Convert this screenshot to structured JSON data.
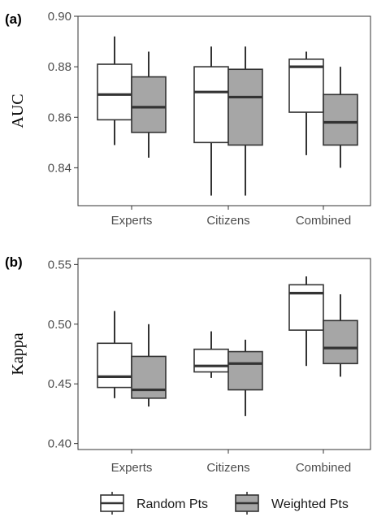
{
  "chart_data": [
    {
      "type": "box",
      "panel_label": "(a)",
      "ylabel": "AUC",
      "categories": [
        "Experts",
        "Citizens",
        "Combined"
      ],
      "ylim": [
        0.825,
        0.9
      ],
      "yticks": [
        0.84,
        0.86,
        0.88,
        0.9
      ],
      "ytick_labels": [
        "0.84",
        "0.86",
        "0.88",
        "0.90"
      ],
      "grid": false,
      "series": [
        {
          "name": "Random Pts",
          "color": "#ffffff",
          "boxes": [
            {
              "min": 0.849,
              "q1": 0.859,
              "median": 0.869,
              "q3": 0.881,
              "max": 0.892
            },
            {
              "min": 0.829,
              "q1": 0.85,
              "median": 0.87,
              "q3": 0.88,
              "max": 0.888
            },
            {
              "min": 0.845,
              "q1": 0.862,
              "median": 0.88,
              "q3": 0.883,
              "max": 0.886
            }
          ]
        },
        {
          "name": "Weighted Pts",
          "color": "#a6a6a6",
          "boxes": [
            {
              "min": 0.844,
              "q1": 0.854,
              "median": 0.864,
              "q3": 0.876,
              "max": 0.886
            },
            {
              "min": 0.829,
              "q1": 0.849,
              "median": 0.868,
              "q3": 0.879,
              "max": 0.888
            },
            {
              "min": 0.84,
              "q1": 0.849,
              "median": 0.858,
              "q3": 0.869,
              "max": 0.88
            }
          ]
        }
      ]
    },
    {
      "type": "box",
      "panel_label": "(b)",
      "ylabel": "Kappa",
      "categories": [
        "Experts",
        "Citizens",
        "Combined"
      ],
      "ylim": [
        0.395,
        0.555
      ],
      "yticks": [
        0.4,
        0.45,
        0.5,
        0.55
      ],
      "ytick_labels": [
        "0.40",
        "0.45",
        "0.50",
        "0.55"
      ],
      "grid": false,
      "series": [
        {
          "name": "Random Pts",
          "color": "#ffffff",
          "boxes": [
            {
              "min": 0.438,
              "q1": 0.447,
              "median": 0.456,
              "q3": 0.484,
              "max": 0.511
            },
            {
              "min": 0.455,
              "q1": 0.46,
              "median": 0.465,
              "q3": 0.479,
              "max": 0.494
            },
            {
              "min": 0.465,
              "q1": 0.495,
              "median": 0.526,
              "q3": 0.533,
              "max": 0.54
            }
          ]
        },
        {
          "name": "Weighted Pts",
          "color": "#a6a6a6",
          "boxes": [
            {
              "min": 0.431,
              "q1": 0.438,
              "median": 0.445,
              "q3": 0.473,
              "max": 0.5
            },
            {
              "min": 0.423,
              "q1": 0.445,
              "median": 0.467,
              "q3": 0.477,
              "max": 0.487
            },
            {
              "min": 0.456,
              "q1": 0.467,
              "median": 0.48,
              "q3": 0.503,
              "max": 0.525
            }
          ]
        }
      ]
    }
  ],
  "legend": {
    "position": "bottom",
    "items": [
      {
        "label": "Random Pts",
        "color": "#ffffff"
      },
      {
        "label": "Weighted Pts",
        "color": "#a6a6a6"
      }
    ]
  }
}
